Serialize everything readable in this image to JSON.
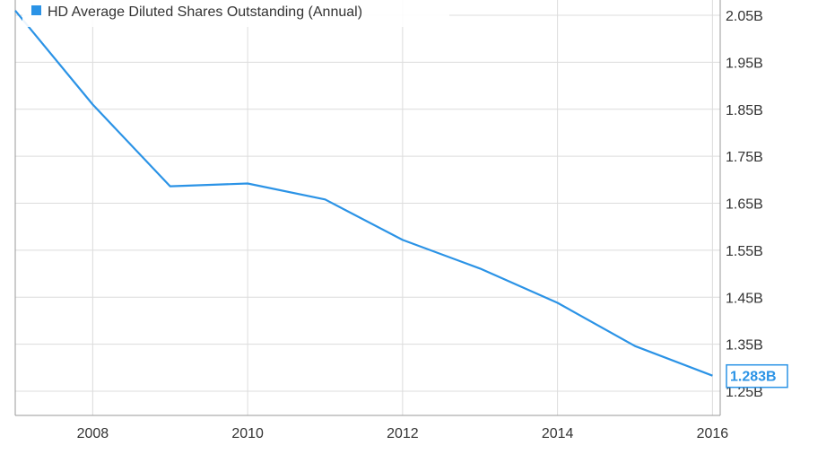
{
  "chart_data": {
    "type": "line",
    "title": "",
    "xlabel": "",
    "ylabel": "",
    "x": [
      2007,
      2008,
      2009,
      2010,
      2011,
      2012,
      2013,
      2014,
      2015,
      2016
    ],
    "series": [
      {
        "name": "HD Average Diluted Shares Outstanding (Annual)",
        "color": "#2b93e6",
        "values": [
          2.06,
          1.86,
          1.686,
          1.692,
          1.658,
          1.572,
          1.511,
          1.438,
          1.346,
          1.283
        ]
      }
    ],
    "last_value_label": "1.283B",
    "x_ticks": [
      "2008",
      "2010",
      "2012",
      "2014",
      "2016"
    ],
    "y_ticks": [
      "2.05B",
      "1.95B",
      "1.85B",
      "1.75B",
      "1.65B",
      "1.55B",
      "1.45B",
      "1.35B",
      "1.25B"
    ],
    "ylim": [
      1.23,
      2.06
    ],
    "grid": true,
    "legend_position": "top-left",
    "axis_position": "right"
  }
}
